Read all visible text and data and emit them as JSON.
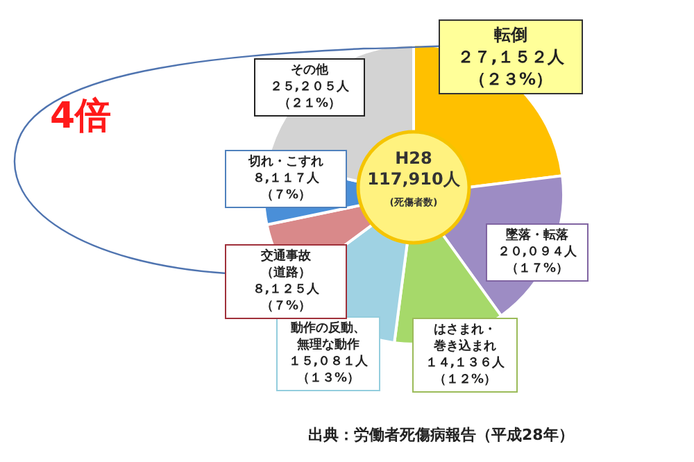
{
  "chart_data": {
    "type": "donut",
    "title": "H28",
    "subtitle": "117,910人",
    "categories": [
      "転倒",
      "墜落・転落",
      "はさまれ・巻き込まれ",
      "動作の反動、無理な動作",
      "交通事故（道路）",
      "切れ・こすれ",
      "その他"
    ],
    "values": [
      27152,
      20094,
      14136,
      15081,
      8125,
      8117,
      25205
    ],
    "value_labels": [
      "２７,１５２人（２３%）",
      "２０,０９４人（１７%）",
      "１４,１３６人（１２%）",
      "１５,０８１人（１３%）",
      "８,１２５人（７%）",
      "８,１１７人（７%）",
      "２５,２０５人（２１%）"
    ],
    "colors": [
      "#ffc000",
      "#9d8cc4",
      "#a6d96a",
      "#9fd2e3",
      "#d9898a",
      "#4a8fd8",
      "#d3d3d3"
    ],
    "annotations": [
      "(死傷者数)",
      "4倍",
      "出典：労働者死傷病報告（平成28年）"
    ],
    "legend": false
  }
}
